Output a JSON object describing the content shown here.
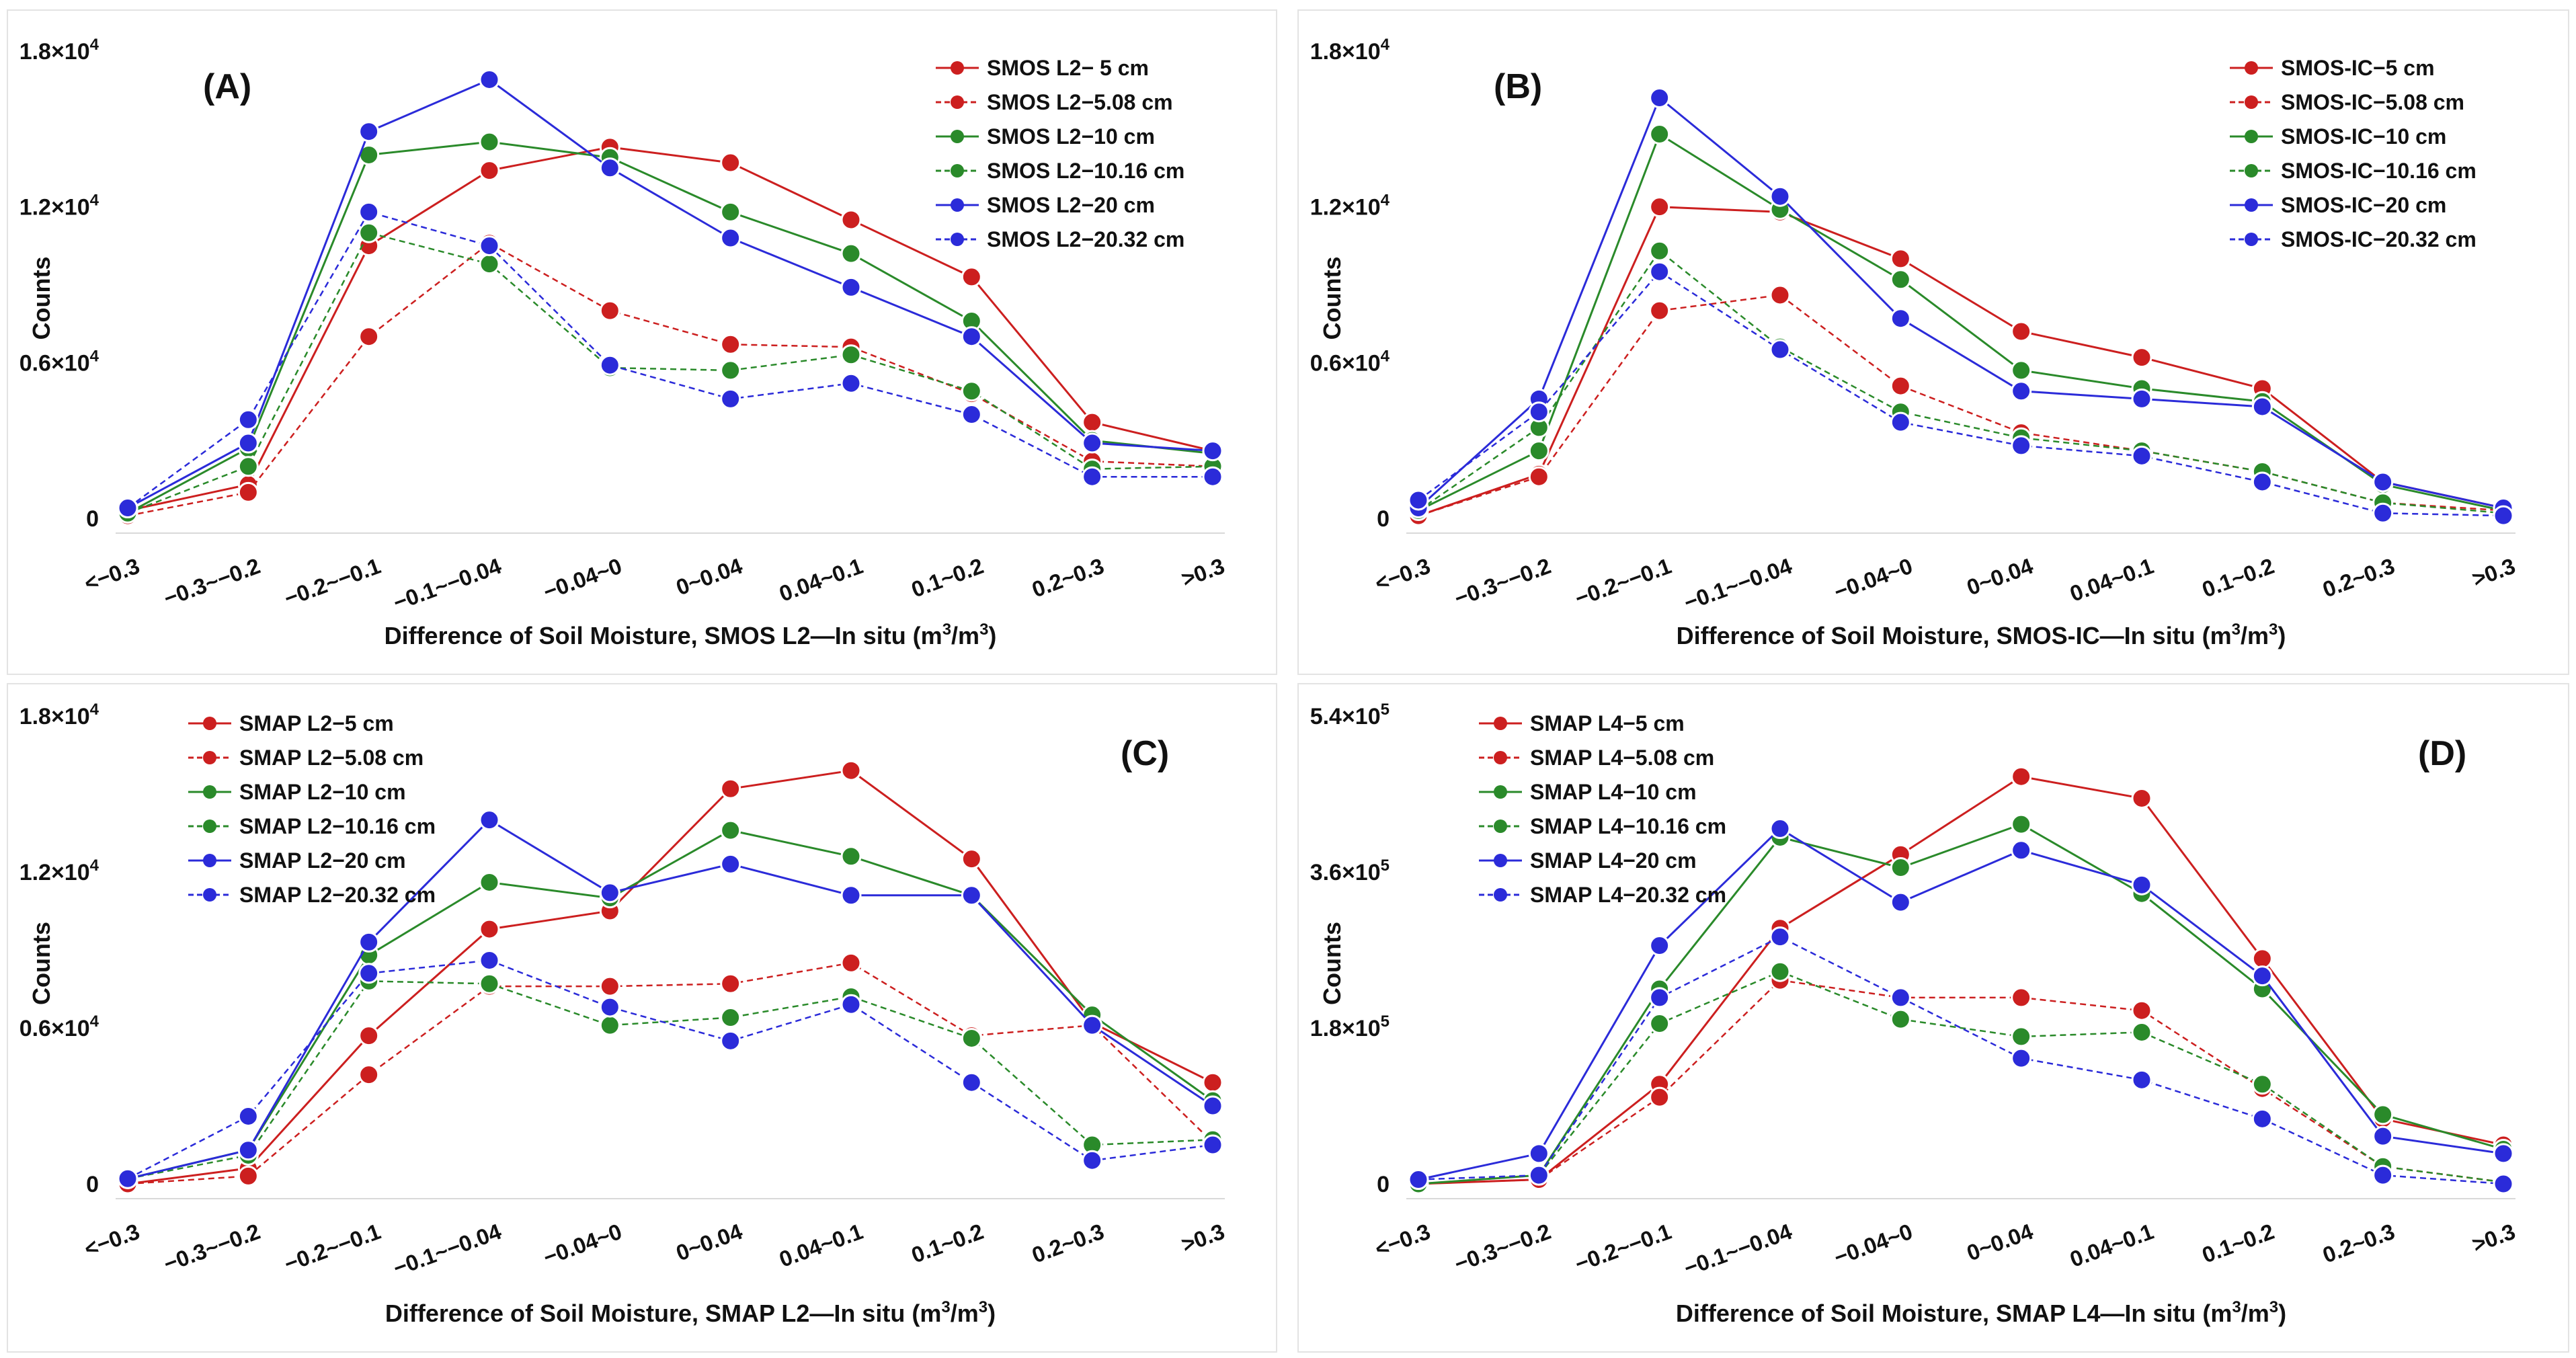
{
  "chart_data": [
    {
      "id": "A",
      "type": "line",
      "panel_label": "(A)",
      "ylabel": "Counts",
      "xlabel_parts": [
        "Difference of Soil Moisture, SMOS L2",
        "—",
        "In situ (m",
        "3",
        "/m",
        "3",
        ")"
      ],
      "categories": [
        "<−0.3",
        "−0.3~−0.2",
        "−0.2~−0.1",
        "−0.1~−0.04",
        "−0.04~0",
        "0~0.04",
        "0.04~0.1",
        "0.1~0.2",
        "0.2~0.3",
        ">0.3"
      ],
      "yticks": [
        {
          "value": 0,
          "label": "0"
        },
        {
          "value": 6000,
          "mant": "0.6",
          "exp": "4"
        },
        {
          "value": 12000,
          "mant": "1.2",
          "exp": "4"
        },
        {
          "value": 18000,
          "mant": "1.8",
          "exp": "4"
        }
      ],
      "ylim": [
        0,
        18000
      ],
      "legend_position": "top-right",
      "series": [
        {
          "name": "SMOS L2− 5 cm",
          "color": "#cc1f1f",
          "dashed": false,
          "values": [
            300,
            1300,
            10500,
            13400,
            14300,
            13700,
            11500,
            9300,
            3700,
            2600
          ]
        },
        {
          "name": "SMOS L2−5.08 cm",
          "color": "#cc1f1f",
          "dashed": true,
          "values": [
            100,
            1000,
            7000,
            10600,
            8000,
            6700,
            6600,
            4800,
            2200,
            2000
          ]
        },
        {
          "name": "SMOS L2−10 cm",
          "color": "#2a8a2a",
          "dashed": false,
          "values": [
            200,
            2700,
            14000,
            14500,
            13900,
            11800,
            10200,
            7600,
            3000,
            2500
          ]
        },
        {
          "name": "SMOS L2−10.16 cm",
          "color": "#2a8a2a",
          "dashed": true,
          "values": [
            200,
            2000,
            11000,
            9800,
            5800,
            5700,
            6300,
            4900,
            1900,
            2000
          ]
        },
        {
          "name": "SMOS L2−20 cm",
          "color": "#2b2bd9",
          "dashed": false,
          "values": [
            400,
            2900,
            14900,
            16900,
            13500,
            10800,
            8900,
            7000,
            2900,
            2600
          ]
        },
        {
          "name": "SMOS L2−20.32 cm",
          "color": "#2b2bd9",
          "dashed": true,
          "values": [
            400,
            3800,
            11800,
            10500,
            5900,
            4600,
            5200,
            4000,
            1600,
            1600
          ]
        }
      ]
    },
    {
      "id": "B",
      "type": "line",
      "panel_label": "(B)",
      "ylabel": "Counts",
      "xlabel_parts": [
        "Difference of Soil Moisture, SMOS-IC",
        "—",
        "In situ (m",
        "3",
        "/m",
        "3",
        ")"
      ],
      "categories": [
        "<−0.3",
        "−0.3~−0.2",
        "−0.2~−0.1",
        "−0.1~−0.04",
        "−0.04~0",
        "0~0.04",
        "0.04~0.1",
        "0.1~0.2",
        "0.2~0.3",
        ">0.3"
      ],
      "yticks": [
        {
          "value": 0,
          "label": "0"
        },
        {
          "value": 6000,
          "mant": "0.6",
          "exp": "4"
        },
        {
          "value": 12000,
          "mant": "1.2",
          "exp": "4"
        },
        {
          "value": 18000,
          "mant": "1.8",
          "exp": "4"
        }
      ],
      "ylim": [
        0,
        18000
      ],
      "legend_position": "top-right",
      "series": [
        {
          "name": "SMOS-IC−5 cm",
          "color": "#cc1f1f",
          "dashed": false,
          "values": [
            100,
            1700,
            12000,
            11800,
            10000,
            7200,
            6200,
            5000,
            1400,
            400
          ]
        },
        {
          "name": "SMOS-IC−5.08 cm",
          "color": "#cc1f1f",
          "dashed": true,
          "values": [
            100,
            1600,
            8000,
            8600,
            5100,
            3300,
            2600,
            1800,
            600,
            300
          ]
        },
        {
          "name": "SMOS-IC−10 cm",
          "color": "#2a8a2a",
          "dashed": false,
          "values": [
            300,
            2600,
            14800,
            11900,
            9200,
            5700,
            5000,
            4500,
            1300,
            300
          ]
        },
        {
          "name": "SMOS-IC−10.16 cm",
          "color": "#2a8a2a",
          "dashed": true,
          "values": [
            300,
            3500,
            10300,
            6600,
            4100,
            3100,
            2600,
            1800,
            600,
            200
          ]
        },
        {
          "name": "SMOS-IC−20 cm",
          "color": "#2b2bd9",
          "dashed": false,
          "values": [
            400,
            4600,
            16200,
            12400,
            7700,
            4900,
            4600,
            4300,
            1400,
            400
          ]
        },
        {
          "name": "SMOS-IC−20.32 cm",
          "color": "#2b2bd9",
          "dashed": true,
          "values": [
            700,
            4100,
            9500,
            6500,
            3700,
            2800,
            2400,
            1400,
            200,
            100
          ]
        }
      ]
    },
    {
      "id": "C",
      "type": "line",
      "panel_label": "(C)",
      "ylabel": "Counts",
      "xlabel_parts": [
        "Difference of Soil Moisture, SMAP L2",
        "—",
        "In situ (m",
        "3",
        "/m",
        "3",
        ")"
      ],
      "categories": [
        "<−0.3",
        "−0.3~−0.2",
        "−0.2~−0.1",
        "−0.1~−0.04",
        "−0.04~0",
        "0~0.04",
        "0.04~0.1",
        "0.1~0.2",
        "0.2~0.3",
        ">0.3"
      ],
      "yticks": [
        {
          "value": 0,
          "label": "0"
        },
        {
          "value": 6000,
          "mant": "0.6",
          "exp": "4"
        },
        {
          "value": 12000,
          "mant": "1.2",
          "exp": "4"
        },
        {
          "value": 18000,
          "mant": "1.8",
          "exp": "4"
        }
      ],
      "ylim": [
        0,
        18000
      ],
      "legend_position": "top-left",
      "series": [
        {
          "name": "SMAP L2−5 cm",
          "color": "#cc1f1f",
          "dashed": false,
          "values": [
            0,
            600,
            5700,
            9800,
            10500,
            15200,
            15900,
            12500,
            6200,
            3900
          ]
        },
        {
          "name": "SMAP L2−5.08 cm",
          "color": "#cc1f1f",
          "dashed": true,
          "values": [
            0,
            300,
            4200,
            7600,
            7600,
            7700,
            8500,
            5700,
            6100,
            1600
          ]
        },
        {
          "name": "SMAP L2−10 cm",
          "color": "#2a8a2a",
          "dashed": false,
          "values": [
            200,
            1300,
            8800,
            11600,
            11000,
            13600,
            12600,
            11100,
            6500,
            3200
          ]
        },
        {
          "name": "SMAP L2−10.16 cm",
          "color": "#2a8a2a",
          "dashed": true,
          "values": [
            200,
            1100,
            7800,
            7700,
            6100,
            6400,
            7200,
            5600,
            1500,
            1700
          ]
        },
        {
          "name": "SMAP L2−20 cm",
          "color": "#2b2bd9",
          "dashed": false,
          "values": [
            200,
            1300,
            9300,
            14000,
            11200,
            12300,
            11100,
            11100,
            6100,
            3000
          ]
        },
        {
          "name": "SMAP L2−20.32 cm",
          "color": "#2b2bd9",
          "dashed": true,
          "values": [
            200,
            2600,
            8100,
            8600,
            6800,
            5500,
            6900,
            3900,
            900,
            1500
          ]
        }
      ]
    },
    {
      "id": "D",
      "type": "line",
      "panel_label": "(D)",
      "ylabel": "Counts",
      "xlabel_parts": [
        "Difference of Soil Moisture, SMAP L4",
        "—",
        "In situ (m",
        "3",
        "/m",
        "3",
        ")"
      ],
      "categories": [
        "<−0.3",
        "−0.3~−0.2",
        "−0.2~−0.1",
        "−0.1~−0.04",
        "−0.04~0",
        "0~0.04",
        "0.04~0.1",
        "0.1~0.2",
        "0.2~0.3",
        ">0.3"
      ],
      "yticks": [
        {
          "value": 0,
          "label": "0"
        },
        {
          "value": 180000,
          "mant": "1.8",
          "exp": "5"
        },
        {
          "value": 360000,
          "mant": "3.6",
          "exp": "5"
        },
        {
          "value": 540000,
          "mant": "5.4",
          "exp": "5"
        }
      ],
      "ylim": [
        0,
        540000
      ],
      "legend_position": "top-left",
      "series": [
        {
          "name": "SMAP L4−5 cm",
          "color": "#cc1f1f",
          "dashed": false,
          "values": [
            0,
            5000,
            115000,
            295000,
            380000,
            470000,
            445000,
            260000,
            75000,
            45000
          ]
        },
        {
          "name": "SMAP L4−5.08 cm",
          "color": "#cc1f1f",
          "dashed": true,
          "values": [
            0,
            5000,
            100000,
            235000,
            215000,
            215000,
            200000,
            110000,
            20000,
            2000
          ]
        },
        {
          "name": "SMAP L4−10 cm",
          "color": "#2a8a2a",
          "dashed": false,
          "values": [
            0,
            10000,
            225000,
            400000,
            365000,
            415000,
            335000,
            225000,
            80000,
            40000
          ]
        },
        {
          "name": "SMAP L4−10.16 cm",
          "color": "#2a8a2a",
          "dashed": true,
          "values": [
            0,
            10000,
            185000,
            245000,
            190000,
            170000,
            175000,
            115000,
            20000,
            2000
          ]
        },
        {
          "name": "SMAP L4−20 cm",
          "color": "#2b2bd9",
          "dashed": false,
          "values": [
            5000,
            35000,
            275000,
            410000,
            325000,
            385000,
            345000,
            240000,
            55000,
            35000
          ]
        },
        {
          "name": "SMAP L4−20.32 cm",
          "color": "#2b2bd9",
          "dashed": true,
          "values": [
            5000,
            10000,
            215000,
            285000,
            215000,
            145000,
            120000,
            75000,
            10000,
            0
          ]
        }
      ]
    }
  ]
}
